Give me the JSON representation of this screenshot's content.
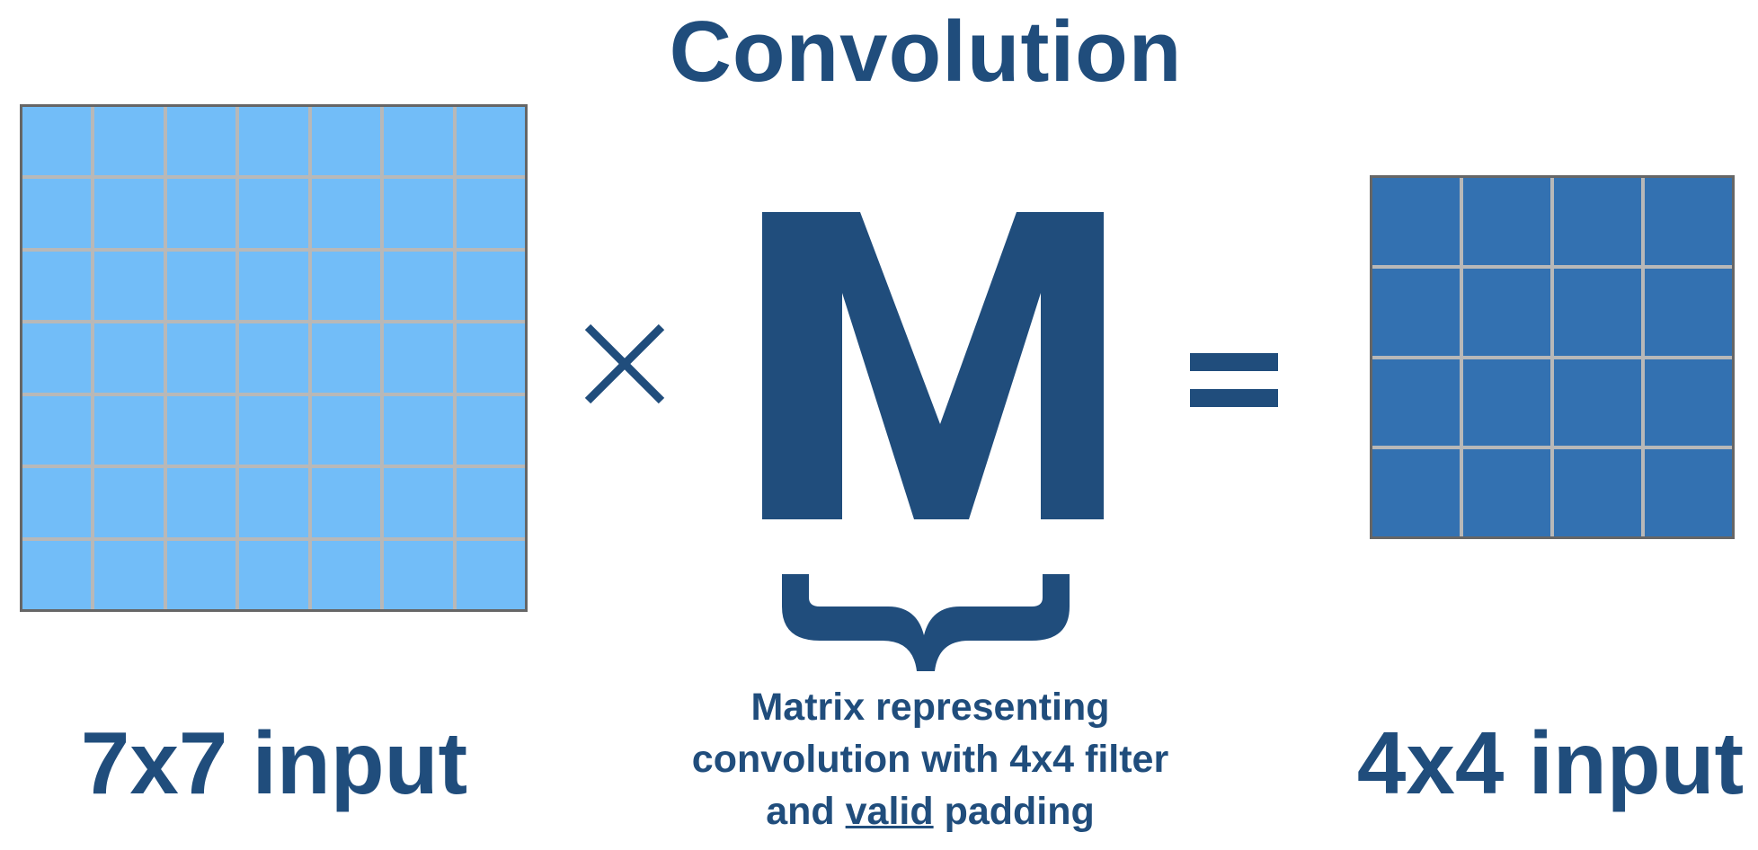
{
  "title": "Convolution",
  "left_grid": {
    "rows": 7,
    "cols": 7,
    "fill": "#72bdf8"
  },
  "right_grid": {
    "rows": 4,
    "cols": 4,
    "fill": "#3371b1"
  },
  "operator_times": "×",
  "matrix_symbol": "M",
  "operator_equals": "=",
  "left_label": "7x7 input",
  "right_label": "4x4 input",
  "caption": {
    "line1": "Matrix representing",
    "line2": "convolution with 4x4 filter",
    "line3_prefix": "and ",
    "line3_underlined": "valid",
    "line3_suffix": " padding"
  },
  "colors": {
    "text": "#204d7c",
    "grid_lines": "#b8b8b8",
    "grid_border": "#666666"
  }
}
